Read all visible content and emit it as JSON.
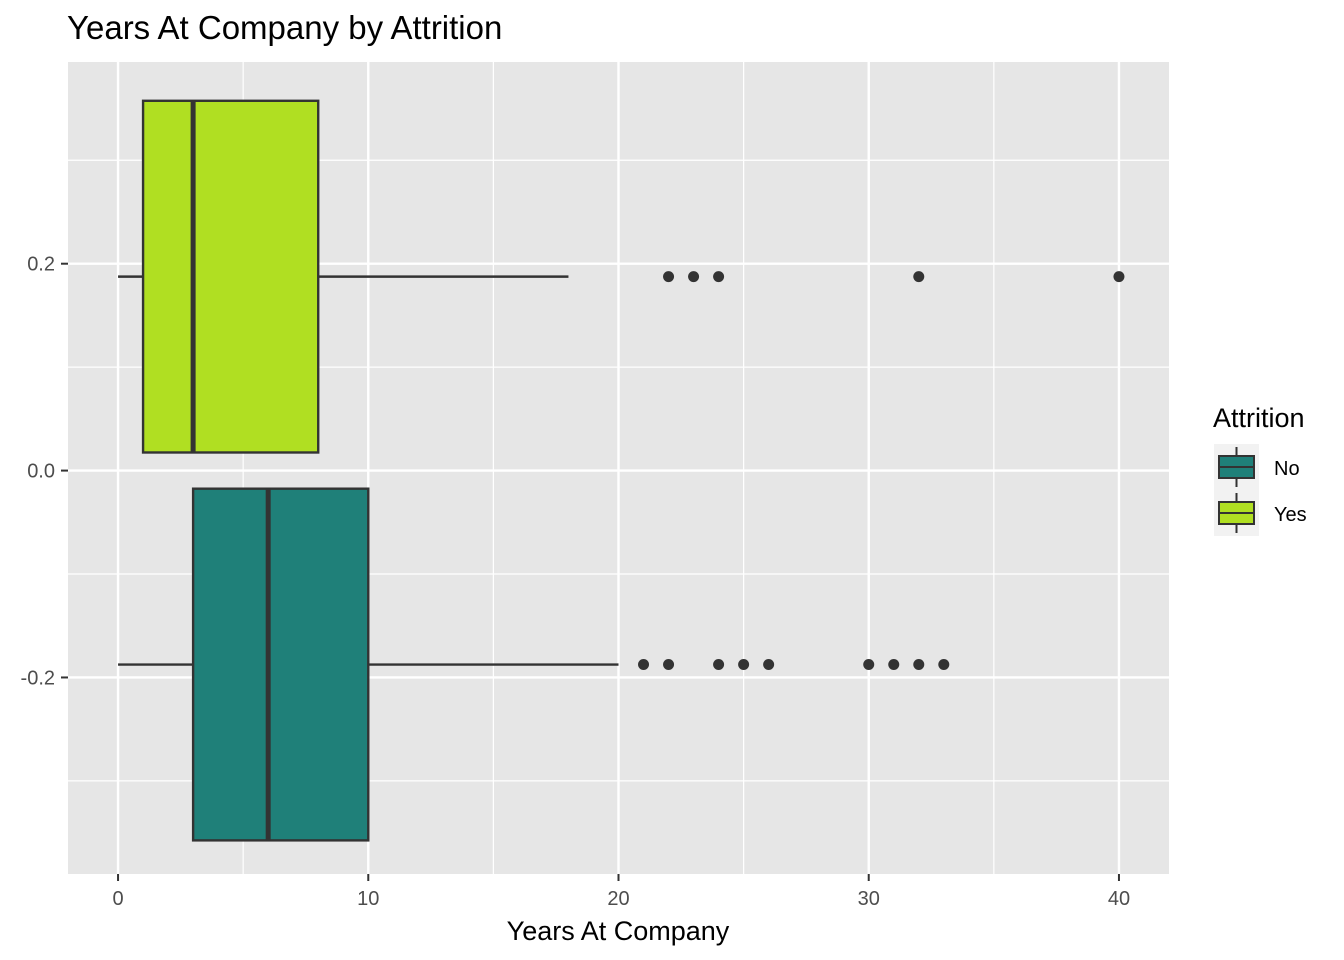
{
  "chart_data": {
    "type": "boxplot",
    "orientation": "horizontal",
    "title": "Years At Company by Attrition",
    "xlabel": "Years At Company",
    "ylabel": "",
    "xlim": [
      -2,
      42
    ],
    "ylim": [
      -0.39,
      0.395
    ],
    "x_ticks": [
      0,
      10,
      20,
      30,
      40
    ],
    "x_tick_labels": [
      "0",
      "10",
      "20",
      "30",
      "40"
    ],
    "y_ticks": [
      0.2,
      0.0,
      -0.2
    ],
    "y_tick_labels": [
      "0.2",
      "0.0",
      "-0.2"
    ],
    "grid": true,
    "legend": {
      "title": "Attrition",
      "position": "right",
      "entries": [
        {
          "label": "No",
          "color": "#1f8079"
        },
        {
          "label": "Yes",
          "color": "#b0df22"
        }
      ]
    },
    "series": [
      {
        "name": "Yes",
        "color": "#b0df22",
        "y_center": 0.1875,
        "y_extent": [
          0.0175,
          0.3575
        ],
        "whisker_low": 0,
        "q1": 1,
        "median": 3,
        "q3": 8,
        "whisker_high": 18,
        "outliers": [
          22,
          23,
          24,
          32,
          40
        ]
      },
      {
        "name": "No",
        "color": "#1f8079",
        "y_center": -0.1875,
        "y_extent": [
          -0.3575,
          -0.0175
        ],
        "whisker_low": 0,
        "q1": 3,
        "median": 6,
        "q3": 10,
        "whisker_high": 20,
        "outliers": [
          21,
          22,
          24,
          25,
          26,
          30,
          31,
          32,
          33
        ]
      }
    ]
  }
}
